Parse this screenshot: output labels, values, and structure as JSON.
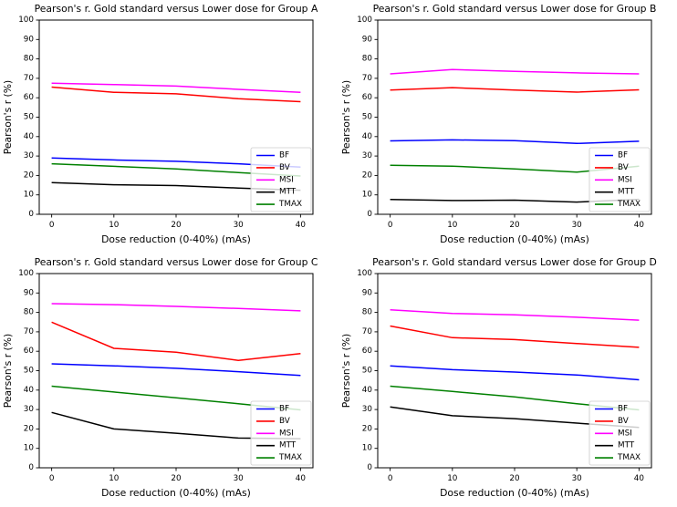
{
  "page": {
    "background": "#ffffff"
  },
  "palette": {
    "BF": "#0000ff",
    "BV": "#ff0000",
    "MSI": "#ff00ff",
    "MTT": "#000000",
    "TMAX": "#008000"
  },
  "legend": {
    "position": "lower right",
    "entries": [
      "BF",
      "BV",
      "MSI",
      "MTT",
      "TMAX"
    ],
    "border_color": "#cccccc",
    "background": "rgba(255,255,255,0.8)"
  },
  "chart_data": [
    {
      "type": "line",
      "group": "A",
      "title": "Pearson's r. Gold standard versus Lower dose for Group A",
      "xlabel": "Dose reduction (0-40%) (mAs)",
      "ylabel": "Pearson's r (%)",
      "x": [
        0,
        10,
        20,
        30,
        40
      ],
      "xticks": [
        0,
        10,
        20,
        30,
        40
      ],
      "yticks": [
        0,
        10,
        20,
        30,
        40,
        50,
        60,
        70,
        80,
        90,
        100
      ],
      "xlim": [
        -2,
        42
      ],
      "ylim": [
        0,
        100
      ],
      "grid": false,
      "legend_position": "lower right",
      "series": [
        {
          "name": "BF",
          "color": "#0000ff",
          "values": [
            29.0,
            28.0,
            27.3,
            26.0,
            24.3
          ]
        },
        {
          "name": "BV",
          "color": "#ff0000",
          "values": [
            65.5,
            62.8,
            62.0,
            59.5,
            58.0
          ]
        },
        {
          "name": "MSI",
          "color": "#ff00ff",
          "values": [
            67.5,
            66.8,
            66.0,
            64.3,
            62.8
          ]
        },
        {
          "name": "MTT",
          "color": "#000000",
          "values": [
            16.3,
            15.2,
            14.8,
            13.5,
            12.4
          ]
        },
        {
          "name": "TMAX",
          "color": "#008000",
          "values": [
            26.0,
            24.7,
            23.4,
            21.5,
            19.7
          ]
        }
      ]
    },
    {
      "type": "line",
      "group": "B",
      "title": "Pearson's r. Gold standard versus Lower dose for Group B",
      "xlabel": "Dose reduction (0-40%) (mAs)",
      "ylabel": "Pearson's r (%)",
      "x": [
        0,
        10,
        20,
        30,
        40
      ],
      "xticks": [
        0,
        10,
        20,
        30,
        40
      ],
      "yticks": [
        0,
        10,
        20,
        30,
        40,
        50,
        60,
        70,
        80,
        90,
        100
      ],
      "xlim": [
        -2,
        42
      ],
      "ylim": [
        0,
        100
      ],
      "grid": false,
      "legend_position": "lower right",
      "series": [
        {
          "name": "BF",
          "color": "#0000ff",
          "values": [
            37.8,
            38.3,
            37.9,
            36.5,
            37.6
          ]
        },
        {
          "name": "BV",
          "color": "#ff0000",
          "values": [
            64.0,
            65.2,
            64.0,
            62.9,
            64.1
          ]
        },
        {
          "name": "MSI",
          "color": "#ff00ff",
          "values": [
            72.3,
            74.5,
            73.6,
            72.8,
            72.3
          ]
        },
        {
          "name": "MTT",
          "color": "#000000",
          "values": [
            7.6,
            7.1,
            7.3,
            6.3,
            7.7
          ]
        },
        {
          "name": "TMAX",
          "color": "#008000",
          "values": [
            25.2,
            24.8,
            23.4,
            21.7,
            24.8
          ]
        }
      ]
    },
    {
      "type": "line",
      "group": "C",
      "title": "Pearson's r. Gold standard versus Lower dose for Group C",
      "xlabel": "Dose reduction (0-40%) (mAs)",
      "ylabel": "Pearson's r (%)",
      "x": [
        0,
        10,
        20,
        30,
        40
      ],
      "xticks": [
        0,
        10,
        20,
        30,
        40
      ],
      "yticks": [
        0,
        10,
        20,
        30,
        40,
        50,
        60,
        70,
        80,
        90,
        100
      ],
      "xlim": [
        -2,
        42
      ],
      "ylim": [
        0,
        100
      ],
      "grid": false,
      "legend_position": "lower right",
      "series": [
        {
          "name": "BF",
          "color": "#0000ff",
          "values": [
            53.5,
            52.5,
            51.2,
            49.5,
            47.5
          ]
        },
        {
          "name": "BV",
          "color": "#ff0000",
          "values": [
            75.0,
            61.5,
            59.5,
            55.3,
            58.8
          ]
        },
        {
          "name": "MSI",
          "color": "#ff00ff",
          "values": [
            84.5,
            84.0,
            83.1,
            82.0,
            80.8
          ]
        },
        {
          "name": "MTT",
          "color": "#000000",
          "values": [
            28.5,
            20.0,
            17.8,
            15.3,
            15.0
          ]
        },
        {
          "name": "TMAX",
          "color": "#008000",
          "values": [
            42.0,
            39.0,
            36.0,
            33.0,
            29.8
          ]
        }
      ]
    },
    {
      "type": "line",
      "group": "D",
      "title": "Pearson's r. Gold standard versus Lower dose for Group D",
      "xlabel": "Dose reduction (0-40%) (mAs)",
      "ylabel": "Pearson's r (%)",
      "x": [
        0,
        10,
        20,
        30,
        40
      ],
      "xticks": [
        0,
        10,
        20,
        30,
        40
      ],
      "yticks": [
        0,
        10,
        20,
        30,
        40,
        50,
        60,
        70,
        80,
        90,
        100
      ],
      "xlim": [
        -2,
        42
      ],
      "ylim": [
        0,
        100
      ],
      "grid": false,
      "legend_position": "lower right",
      "series": [
        {
          "name": "BF",
          "color": "#0000ff",
          "values": [
            52.5,
            50.5,
            49.3,
            47.8,
            45.3
          ]
        },
        {
          "name": "BV",
          "color": "#ff0000",
          "values": [
            73.0,
            67.0,
            66.0,
            64.0,
            62.0
          ]
        },
        {
          "name": "MSI",
          "color": "#ff00ff",
          "values": [
            81.3,
            79.5,
            78.8,
            77.5,
            76.0
          ]
        },
        {
          "name": "MTT",
          "color": "#000000",
          "values": [
            31.3,
            26.8,
            25.3,
            23.0,
            20.8
          ]
        },
        {
          "name": "TMAX",
          "color": "#008000",
          "values": [
            42.0,
            39.3,
            36.5,
            33.0,
            29.8
          ]
        }
      ]
    }
  ]
}
